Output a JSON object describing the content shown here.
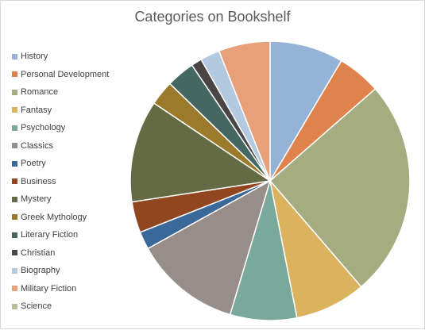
{
  "chart_data": {
    "type": "pie",
    "title": "Categories on Bookshelf",
    "legend_position": "left",
    "slices": [
      {
        "label": "History",
        "value": 8.3,
        "color": "#95b3d7"
      },
      {
        "label": "Personal Development",
        "value": 4.9,
        "color": "#e0824b"
      },
      {
        "label": "Romance",
        "value": 24.5,
        "color": "#a5ad80"
      },
      {
        "label": "Fantasy",
        "value": 8.0,
        "color": "#dbb35e"
      },
      {
        "label": "Psychology",
        "value": 7.5,
        "color": "#7aa99b"
      },
      {
        "label": "Classics",
        "value": 12.0,
        "color": "#978d89"
      },
      {
        "label": "Poetry",
        "value": 2.0,
        "color": "#3a6898"
      },
      {
        "label": "Business",
        "value": 3.5,
        "color": "#924620"
      },
      {
        "label": "Mystery",
        "value": 11.5,
        "color": "#646b44"
      },
      {
        "label": "Greek Mythology",
        "value": 2.8,
        "color": "#9c7a2b"
      },
      {
        "label": "Literary Fiction",
        "value": 3.2,
        "color": "#456762"
      },
      {
        "label": "Christian",
        "value": 1.2,
        "color": "#4a4444"
      },
      {
        "label": "Biography",
        "value": 2.2,
        "color": "#b2c9e0"
      },
      {
        "label": "Military Fiction",
        "value": 5.8,
        "color": "#e7a07a"
      },
      {
        "label": "Science",
        "value": 0,
        "color": "#b6bf96"
      }
    ]
  }
}
